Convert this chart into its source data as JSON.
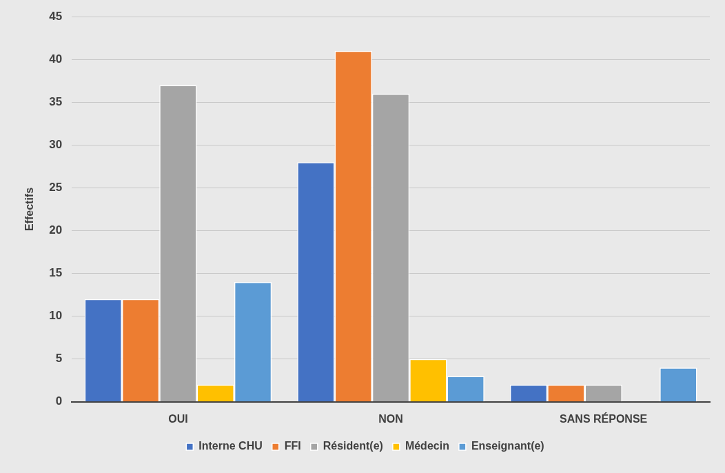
{
  "chart_data": {
    "type": "bar",
    "ylabel": "Effectifs",
    "categories": [
      "OUI",
      "NON",
      "SANS RÉPONSE"
    ],
    "series": [
      {
        "name": "Interne CHU",
        "color": "#4472c4",
        "values": [
          12,
          28,
          2
        ]
      },
      {
        "name": "FFI",
        "color": "#ed7d31",
        "values": [
          12,
          41,
          2
        ]
      },
      {
        "name": "Résident(e)",
        "color": "#a5a5a5",
        "values": [
          37,
          36,
          2
        ]
      },
      {
        "name": "Médecin",
        "color": "#ffc000",
        "values": [
          2,
          5,
          0
        ]
      },
      {
        "name": "Enseignant(e)",
        "color": "#5b9bd5",
        "values": [
          14,
          3,
          4
        ]
      }
    ],
    "ylim": [
      0,
      45
    ],
    "yticks": [
      0,
      5,
      10,
      15,
      20,
      25,
      30,
      35,
      40,
      45
    ],
    "grid": "y",
    "legend": "bottom"
  }
}
